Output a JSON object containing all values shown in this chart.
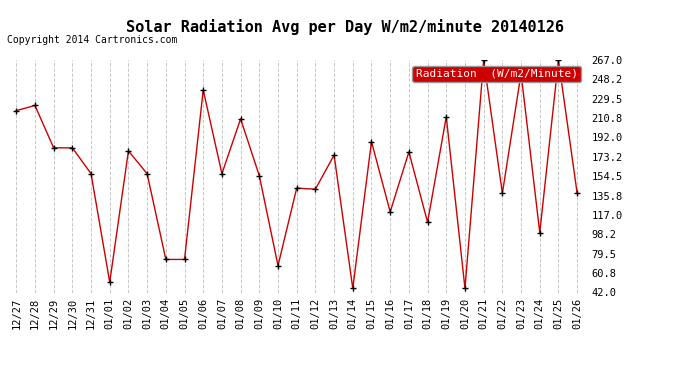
{
  "title": "Solar Radiation Avg per Day W/m2/minute 20140126",
  "copyright": "Copyright 2014 Cartronics.com",
  "legend_label": "Radiation  (W/m2/Minute)",
  "legend_bg": "#cc0000",
  "legend_fg": "#ffffff",
  "line_color": "#cc0000",
  "marker_color": "#000000",
  "bg_color": "#ffffff",
  "plot_bg": "#ffffff",
  "grid_color": "#c8c8c8",
  "dates": [
    "12/27",
    "12/28",
    "12/29",
    "12/30",
    "12/31",
    "01/01",
    "01/02",
    "01/03",
    "01/04",
    "01/05",
    "01/06",
    "01/07",
    "01/08",
    "01/09",
    "01/10",
    "01/11",
    "01/12",
    "01/13",
    "01/14",
    "01/15",
    "01/16",
    "01/17",
    "01/18",
    "01/19",
    "01/20",
    "01/21",
    "01/22",
    "01/23",
    "01/24",
    "01/25",
    "01/26"
  ],
  "values": [
    218,
    223,
    182,
    182,
    157,
    52,
    179,
    157,
    74,
    74,
    238,
    157,
    210,
    155,
    68,
    143,
    142,
    175,
    46,
    188,
    120,
    178,
    110,
    212,
    46,
    267,
    138,
    254,
    100,
    267,
    138
  ],
  "ylim_min": 42.0,
  "ylim_max": 267.0,
  "ytick_values": [
    42.0,
    60.8,
    79.5,
    98.2,
    117.0,
    135.8,
    154.5,
    173.2,
    192.0,
    210.8,
    229.5,
    248.2,
    267.0
  ],
  "ytick_labels": [
    "42.0",
    "60.8",
    "79.5",
    "98.2",
    "117.0",
    "135.8",
    "154.5",
    "173.2",
    "192.0",
    "210.8",
    "229.5",
    "248.2",
    "267.0"
  ],
  "title_fontsize": 11,
  "copyright_fontsize": 7,
  "tick_fontsize": 7.5,
  "legend_fontsize": 8
}
